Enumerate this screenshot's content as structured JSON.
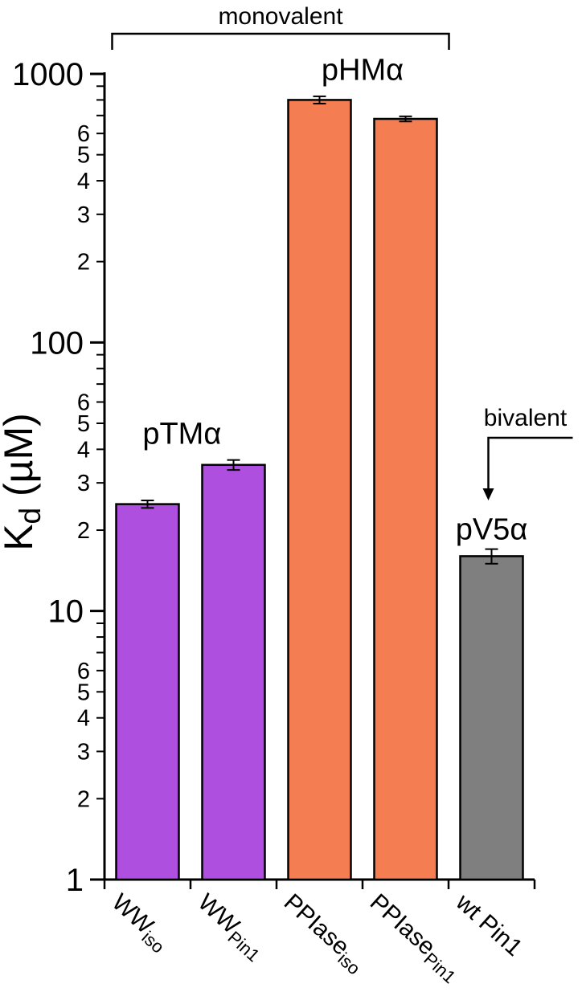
{
  "figure": {
    "background": "#ffffff"
  },
  "chart_data": {
    "type": "bar",
    "yscale": "log",
    "ylim": [
      1,
      1000
    ],
    "ylabel": "Kd (µM)",
    "grid": false,
    "legend": "none",
    "y_axis": {
      "label_main": "K",
      "label_sub": "d",
      "label_unit": " (µM)",
      "major_labels": [
        "1",
        "10",
        "100",
        "1000"
      ],
      "minor_labels": [
        "2",
        "3",
        "4",
        "5",
        "6"
      ]
    },
    "categories": [
      {
        "main": "WW",
        "sub": "iso"
      },
      {
        "main": "WW",
        "sub": "Pin1"
      },
      {
        "main": "PPIase",
        "sub": "iso"
      },
      {
        "main": "PPIase",
        "sub": "Pin1"
      },
      {
        "main": "wt Pin1",
        "sub": ""
      }
    ],
    "values": [
      25,
      35,
      800,
      680,
      16
    ],
    "errors": [
      0.8,
      1.5,
      25,
      15,
      1.0
    ],
    "bar_colors": [
      "#ae4fdf",
      "#ae4fdf",
      "#f47e52",
      "#f47e52",
      "#7f7f7f"
    ],
    "annotations": {
      "monovalent": {
        "label": "monovalent",
        "from_bar": 0,
        "to_bar": 3
      },
      "bivalent": {
        "label": "bivalent",
        "bar": 4
      },
      "group_labels": [
        {
          "text": "pTMα",
          "x_bar": 0.4,
          "value": 42
        },
        {
          "text": "pHMα",
          "x_bar": 2.5,
          "value": 950
        },
        {
          "text": "pV5α",
          "x_bar": 4.0,
          "value": 18.5
        }
      ]
    }
  }
}
